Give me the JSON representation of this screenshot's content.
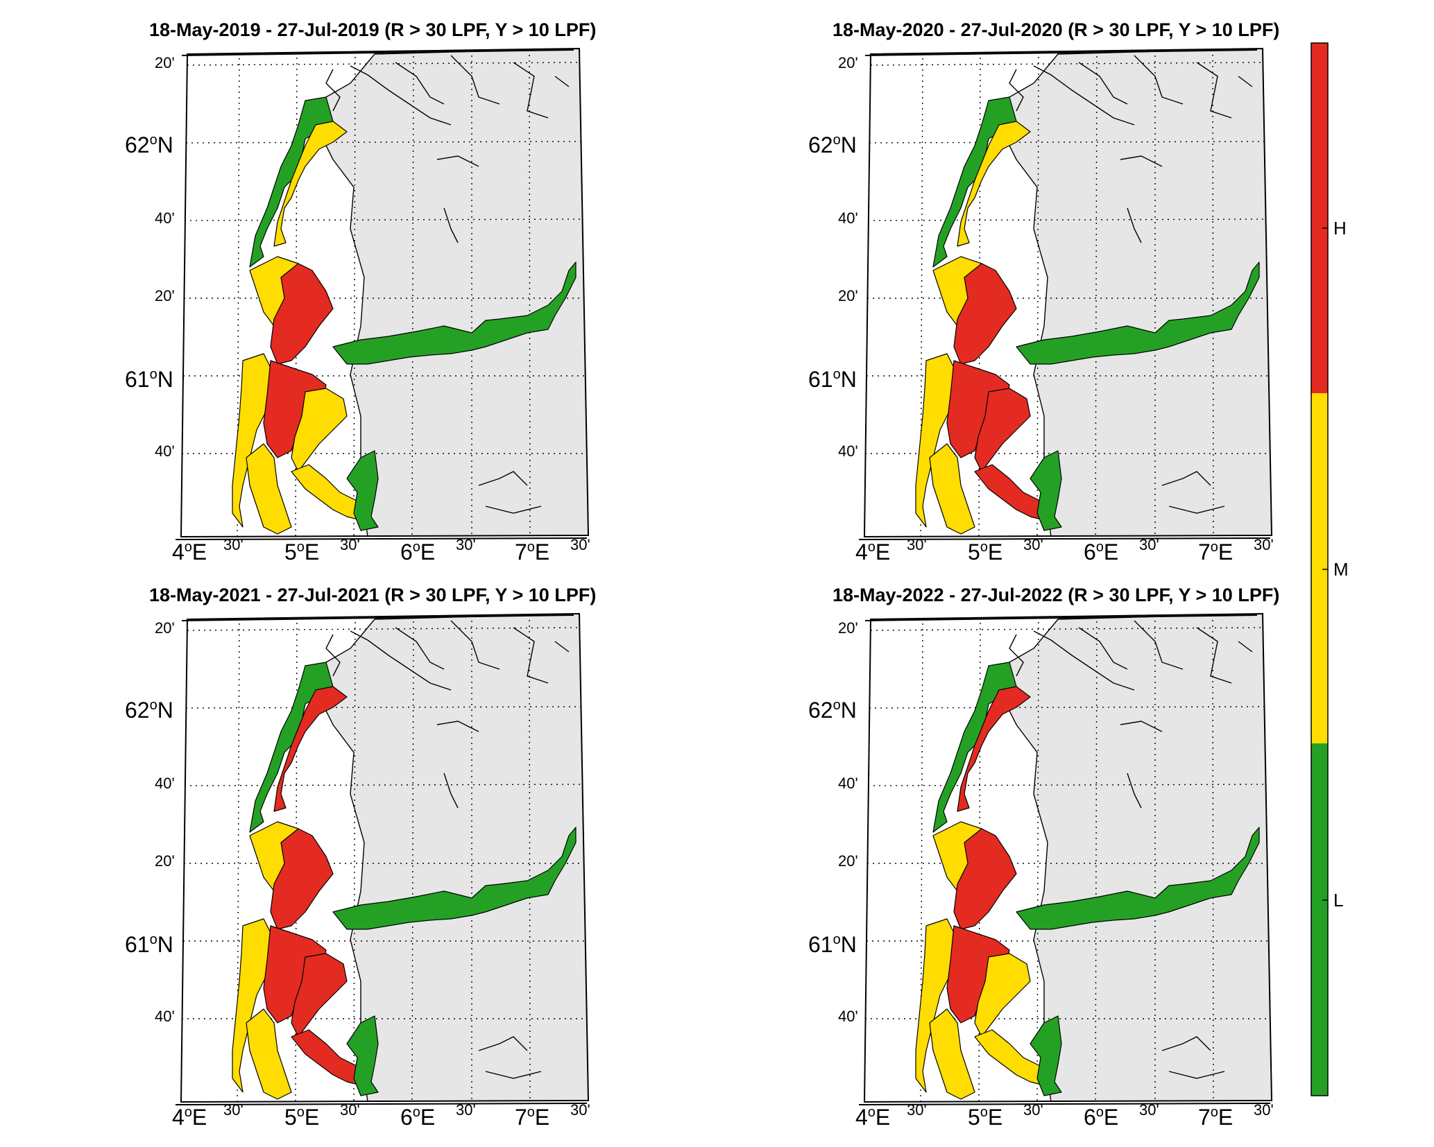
{
  "figure": {
    "colorbar": {
      "labels": [
        "H",
        "M",
        "L"
      ],
      "colors": {
        "H": "#e32b22",
        "M": "#ffdd00",
        "L": "#24a124"
      }
    },
    "land_color": "#e6e6e6",
    "axis_labels": {
      "lon_major": [
        {
          "deg": "4",
          "sup": "o",
          "hem": "E"
        },
        {
          "deg": "5",
          "sup": "o",
          "hem": "E"
        },
        {
          "deg": "6",
          "sup": "o",
          "hem": "E"
        },
        {
          "deg": "7",
          "sup": "o",
          "hem": "E"
        }
      ],
      "lon_minor": [
        "30'",
        "30'",
        "30'",
        "30'"
      ],
      "lat_major": [
        {
          "deg": "62",
          "sup": "o",
          "hem": "N"
        },
        {
          "deg": "61",
          "sup": "o",
          "hem": "N"
        }
      ],
      "lat_minor": [
        "20'",
        "40'",
        "20'",
        "40'"
      ]
    },
    "panels": [
      {
        "title": "18-May-2019  - 27-Jul-2019  (R > 30 LPF, Y > 10 LPF)",
        "zones": {
          "north_coast": "L",
          "north_fjord": "M",
          "sogn_outer": "M",
          "sogn_mid": "H",
          "sogn_inner": "L",
          "coast_mid": "M",
          "bergen": "H",
          "hardanger": "M",
          "south_coast": "M",
          "south_fjord": "M",
          "south_inner": "L"
        }
      },
      {
        "title": "18-May-2020  - 27-Jul-2020  (R > 30 LPF, Y > 10 LPF)",
        "zones": {
          "north_coast": "L",
          "north_fjord": "M",
          "sogn_outer": "M",
          "sogn_mid": "H",
          "sogn_inner": "L",
          "coast_mid": "M",
          "bergen": "H",
          "hardanger": "H",
          "south_coast": "M",
          "south_fjord": "H",
          "south_inner": "L"
        }
      },
      {
        "title": "18-May-2021  - 27-Jul-2021  (R > 30 LPF, Y > 10 LPF)",
        "zones": {
          "north_coast": "L",
          "north_fjord": "H",
          "sogn_outer": "M",
          "sogn_mid": "H",
          "sogn_inner": "L",
          "coast_mid": "M",
          "bergen": "H",
          "hardanger": "H",
          "south_coast": "M",
          "south_fjord": "H",
          "south_inner": "L"
        }
      },
      {
        "title": "18-May-2022  - 27-Jul-2022  (R > 30 LPF, Y > 10 LPF)",
        "zones": {
          "north_coast": "L",
          "north_fjord": "H",
          "sogn_outer": "M",
          "sogn_mid": "H",
          "sogn_inner": "L",
          "coast_mid": "M",
          "bergen": "H",
          "hardanger": "M",
          "south_coast": "M",
          "south_fjord": "M",
          "south_inner": "L"
        }
      }
    ]
  }
}
